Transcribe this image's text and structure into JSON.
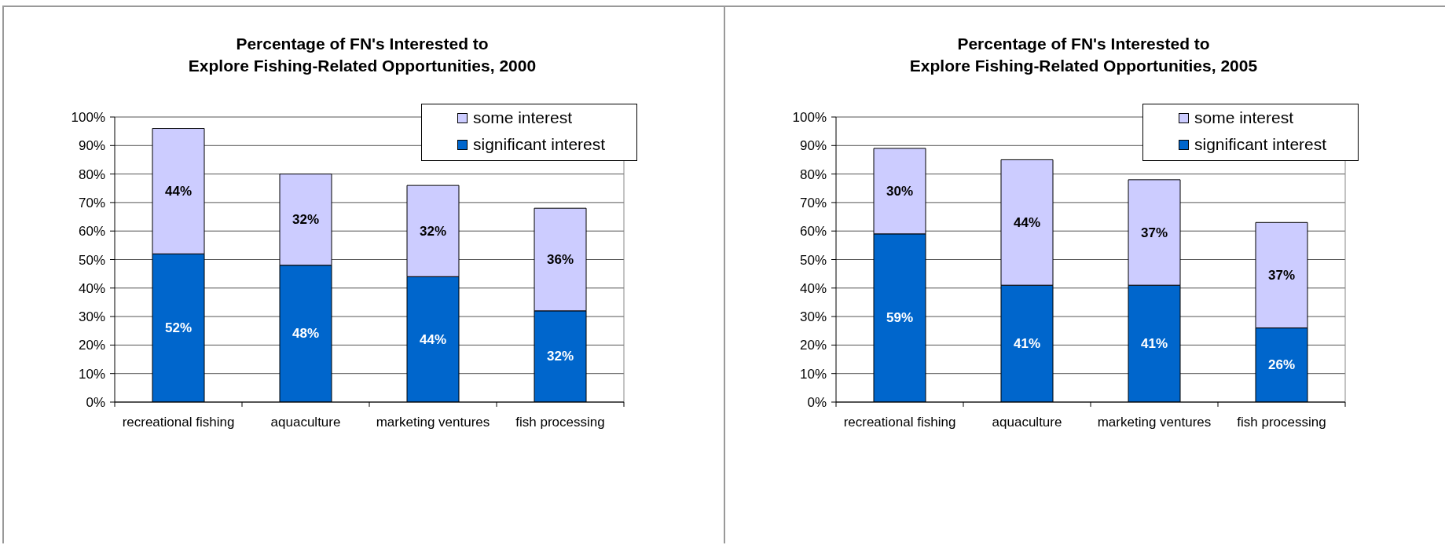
{
  "chart_data": [
    {
      "type": "bar",
      "title": "Percentage of FN's Interested to\nExplore Fishing-Related Opportunities, 2000",
      "categories": [
        "recreational fishing",
        "aquaculture",
        "marketing ventures",
        "fish processing"
      ],
      "stacked": true,
      "series": [
        {
          "name": "significant interest",
          "color": "#0066cc",
          "values": [
            52,
            48,
            44,
            32
          ],
          "value_labels": [
            "52%",
            "48%",
            "44%",
            "32%"
          ]
        },
        {
          "name": "some interest",
          "color": "#ccccff",
          "values": [
            44,
            32,
            32,
            36
          ],
          "value_labels": [
            "44%",
            "32%",
            "32%",
            "36%"
          ]
        }
      ],
      "ylim": [
        0,
        100
      ],
      "yticks": [
        {
          "value": 0,
          "label": "0%"
        },
        {
          "value": 10,
          "label": "10%"
        },
        {
          "value": 20,
          "label": "20%"
        },
        {
          "value": 30,
          "label": "30%"
        },
        {
          "value": 40,
          "label": "40%"
        },
        {
          "value": 50,
          "label": "50%"
        },
        {
          "value": 60,
          "label": "60%"
        },
        {
          "value": 70,
          "label": "70%"
        },
        {
          "value": 80,
          "label": "80%"
        },
        {
          "value": 90,
          "label": "90%"
        },
        {
          "value": 100,
          "label": "100%"
        }
      ],
      "grid": "y",
      "legend": "top right"
    },
    {
      "type": "bar",
      "title": "Percentage of FN's Interested to\nExplore Fishing-Related Opportunities, 2005",
      "categories": [
        "recreational fishing",
        "aquaculture",
        "marketing ventures",
        "fish processing"
      ],
      "stacked": true,
      "series": [
        {
          "name": "significant interest",
          "color": "#0066cc",
          "values": [
            59,
            41,
            41,
            26
          ],
          "value_labels": [
            "59%",
            "41%",
            "41%",
            "26%"
          ]
        },
        {
          "name": "some interest",
          "color": "#ccccff",
          "values": [
            30,
            44,
            37,
            37
          ],
          "value_labels": [
            "30%",
            "44%",
            "37%",
            "37%"
          ]
        }
      ],
      "ylim": [
        0,
        100
      ],
      "yticks": [
        {
          "value": 0,
          "label": "0%"
        },
        {
          "value": 10,
          "label": "10%"
        },
        {
          "value": 20,
          "label": "20%"
        },
        {
          "value": 30,
          "label": "30%"
        },
        {
          "value": 40,
          "label": "40%"
        },
        {
          "value": 50,
          "label": "50%"
        },
        {
          "value": 60,
          "label": "60%"
        },
        {
          "value": 70,
          "label": "70%"
        },
        {
          "value": 80,
          "label": "80%"
        },
        {
          "value": 90,
          "label": "90%"
        },
        {
          "value": 100,
          "label": "100%"
        }
      ],
      "grid": "y",
      "legend": "top right"
    }
  ]
}
